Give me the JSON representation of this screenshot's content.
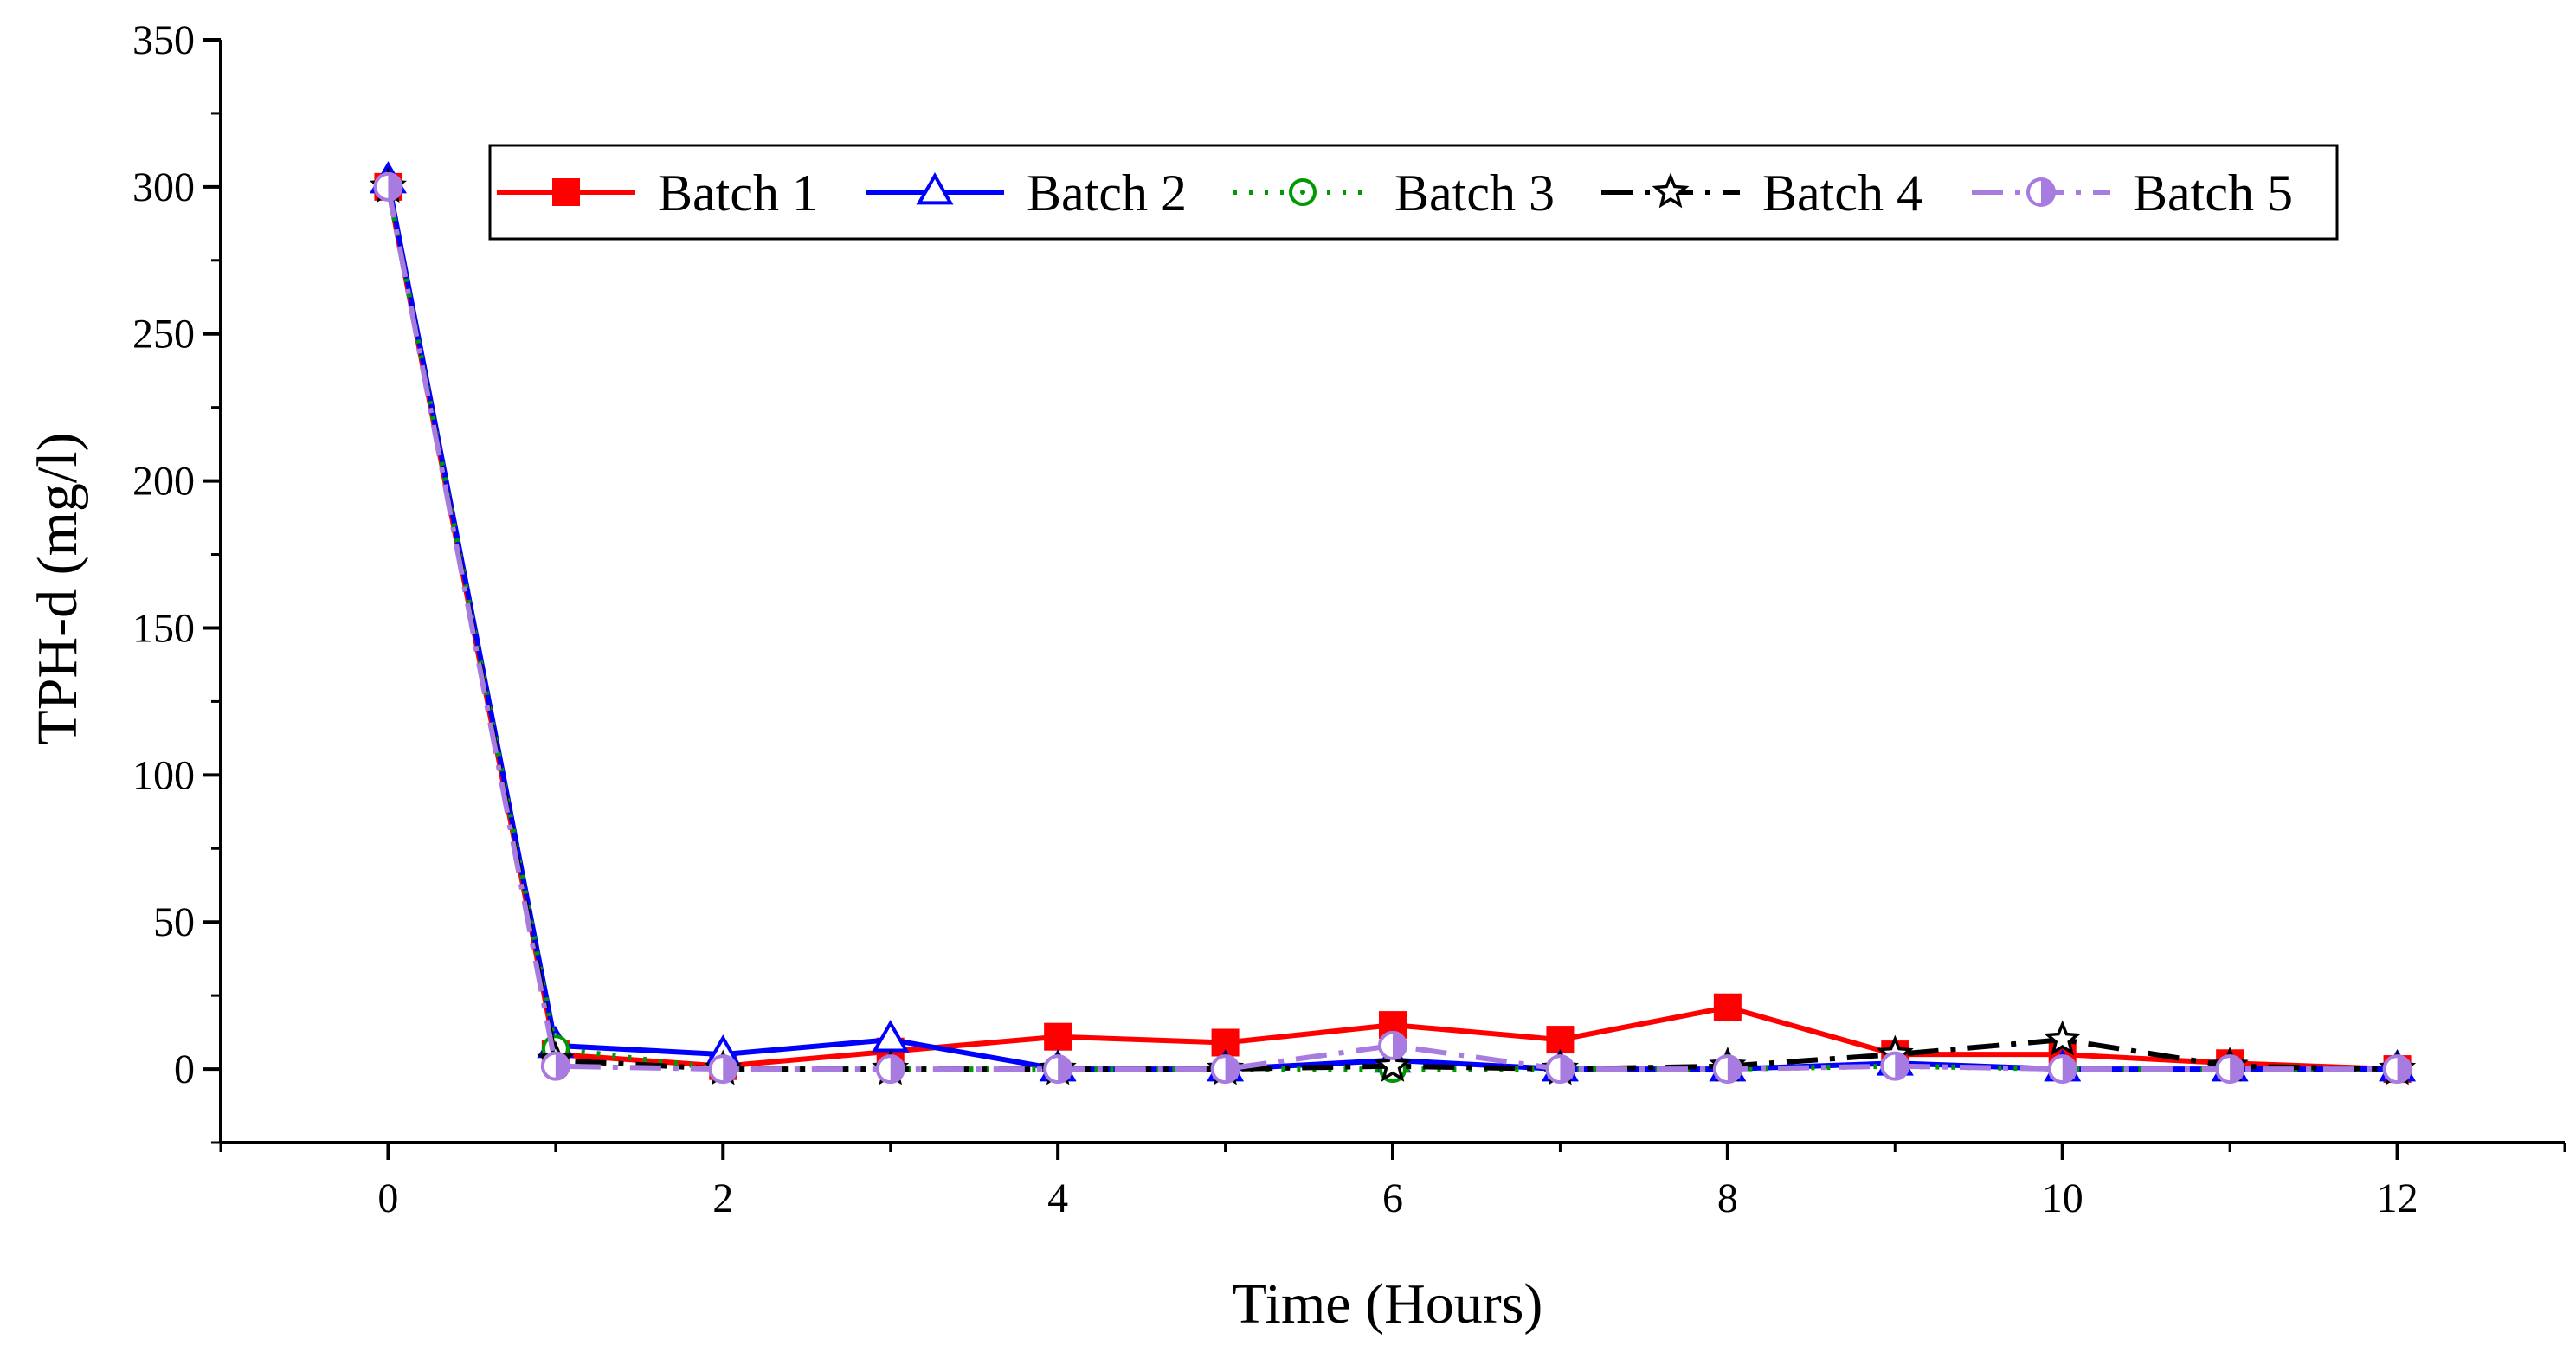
{
  "chart_data": {
    "type": "line",
    "title": "",
    "xlabel": "Time (Hours)",
    "ylabel": "TPH-d (mg/l)",
    "xlim": [
      -1,
      13
    ],
    "ylim": [
      -25,
      350
    ],
    "xticks": [
      0,
      2,
      4,
      6,
      8,
      10,
      12
    ],
    "yticks": [
      0,
      50,
      100,
      150,
      200,
      250,
      300,
      350
    ],
    "grid": false,
    "legend_position": "top-center",
    "x": [
      0,
      1,
      2,
      3,
      4,
      5,
      6,
      7,
      8,
      9,
      10,
      11,
      12
    ],
    "series": [
      {
        "name": "Batch 1",
        "color": "#ff0000",
        "line_style": "solid",
        "marker": "filled-square",
        "values": [
          300,
          5,
          1,
          6,
          11,
          9,
          15,
          10,
          21,
          5,
          5,
          2,
          0
        ]
      },
      {
        "name": "Batch 2",
        "color": "#0000ff",
        "line_style": "solid",
        "marker": "open-triangle",
        "values": [
          302,
          8,
          5,
          10,
          0,
          0,
          3,
          0,
          0,
          2,
          0,
          0,
          0
        ]
      },
      {
        "name": "Batch 3",
        "color": "#009900",
        "line_style": "dotted",
        "marker": "open-circle-dot",
        "values": [
          300,
          7,
          0,
          0,
          0,
          0,
          0,
          0,
          0,
          1,
          0,
          0,
          0
        ]
      },
      {
        "name": "Batch 4",
        "color": "#000000",
        "line_style": "dash-dot",
        "marker": "open-star",
        "values": [
          300,
          3,
          0,
          0,
          0,
          0,
          1,
          0,
          1,
          5,
          10,
          1,
          0
        ]
      },
      {
        "name": "Batch 5",
        "color": "#a77be0",
        "line_style": "dash-dot",
        "marker": "half-filled-circle",
        "values": [
          300,
          1,
          0,
          0,
          0,
          0,
          8,
          0,
          0,
          1,
          0,
          0,
          0
        ]
      }
    ]
  }
}
